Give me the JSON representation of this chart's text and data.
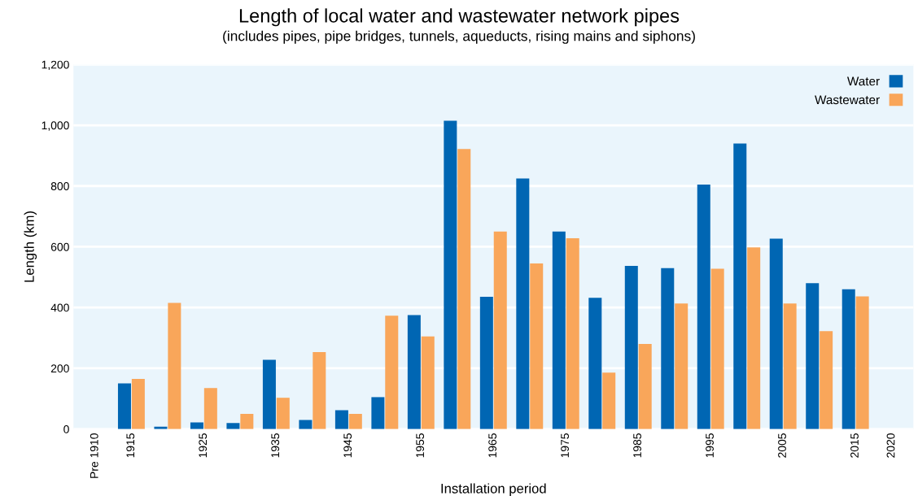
{
  "chart_data": {
    "type": "bar",
    "title": "Length of local water and wastewater network pipes",
    "subtitle": "(includes pipes, pipe bridges, tunnels, aqueducts, rising mains and siphons)",
    "xlabel": "Installation period",
    "ylabel": "Length (km)",
    "categories": [
      "Pre 1910",
      "1915",
      null,
      "1925",
      null,
      "1935",
      null,
      "1945",
      null,
      "1955",
      null,
      "1965",
      null,
      "1975",
      null,
      "1985",
      null,
      "1995",
      null,
      "2005",
      null,
      "2015",
      "2020"
    ],
    "series": [
      {
        "name": "Water",
        "color": "#0066b3",
        "values": [
          null,
          150,
          8,
          22,
          20,
          228,
          30,
          62,
          105,
          375,
          1015,
          435,
          825,
          650,
          432,
          537,
          530,
          805,
          940,
          627,
          480,
          460,
          null
        ]
      },
      {
        "name": "Wastewater",
        "color": "#f9a65a",
        "values": [
          null,
          165,
          415,
          135,
          50,
          103,
          253,
          50,
          373,
          305,
          922,
          650,
          545,
          628,
          186,
          280,
          413,
          528,
          598,
          413,
          322,
          437,
          null
        ]
      }
    ],
    "ylim": [
      0,
      1200
    ],
    "yticks": [
      {
        "value": 0,
        "label": "0"
      },
      {
        "value": 200,
        "label": "200"
      },
      {
        "value": 400,
        "label": "400"
      },
      {
        "value": 600,
        "label": "600"
      },
      {
        "value": 800,
        "label": "800"
      },
      {
        "value": 1000,
        "label": "1,000"
      },
      {
        "value": 1200,
        "label": "1,200"
      }
    ],
    "grid": "y",
    "legend": "top right"
  }
}
